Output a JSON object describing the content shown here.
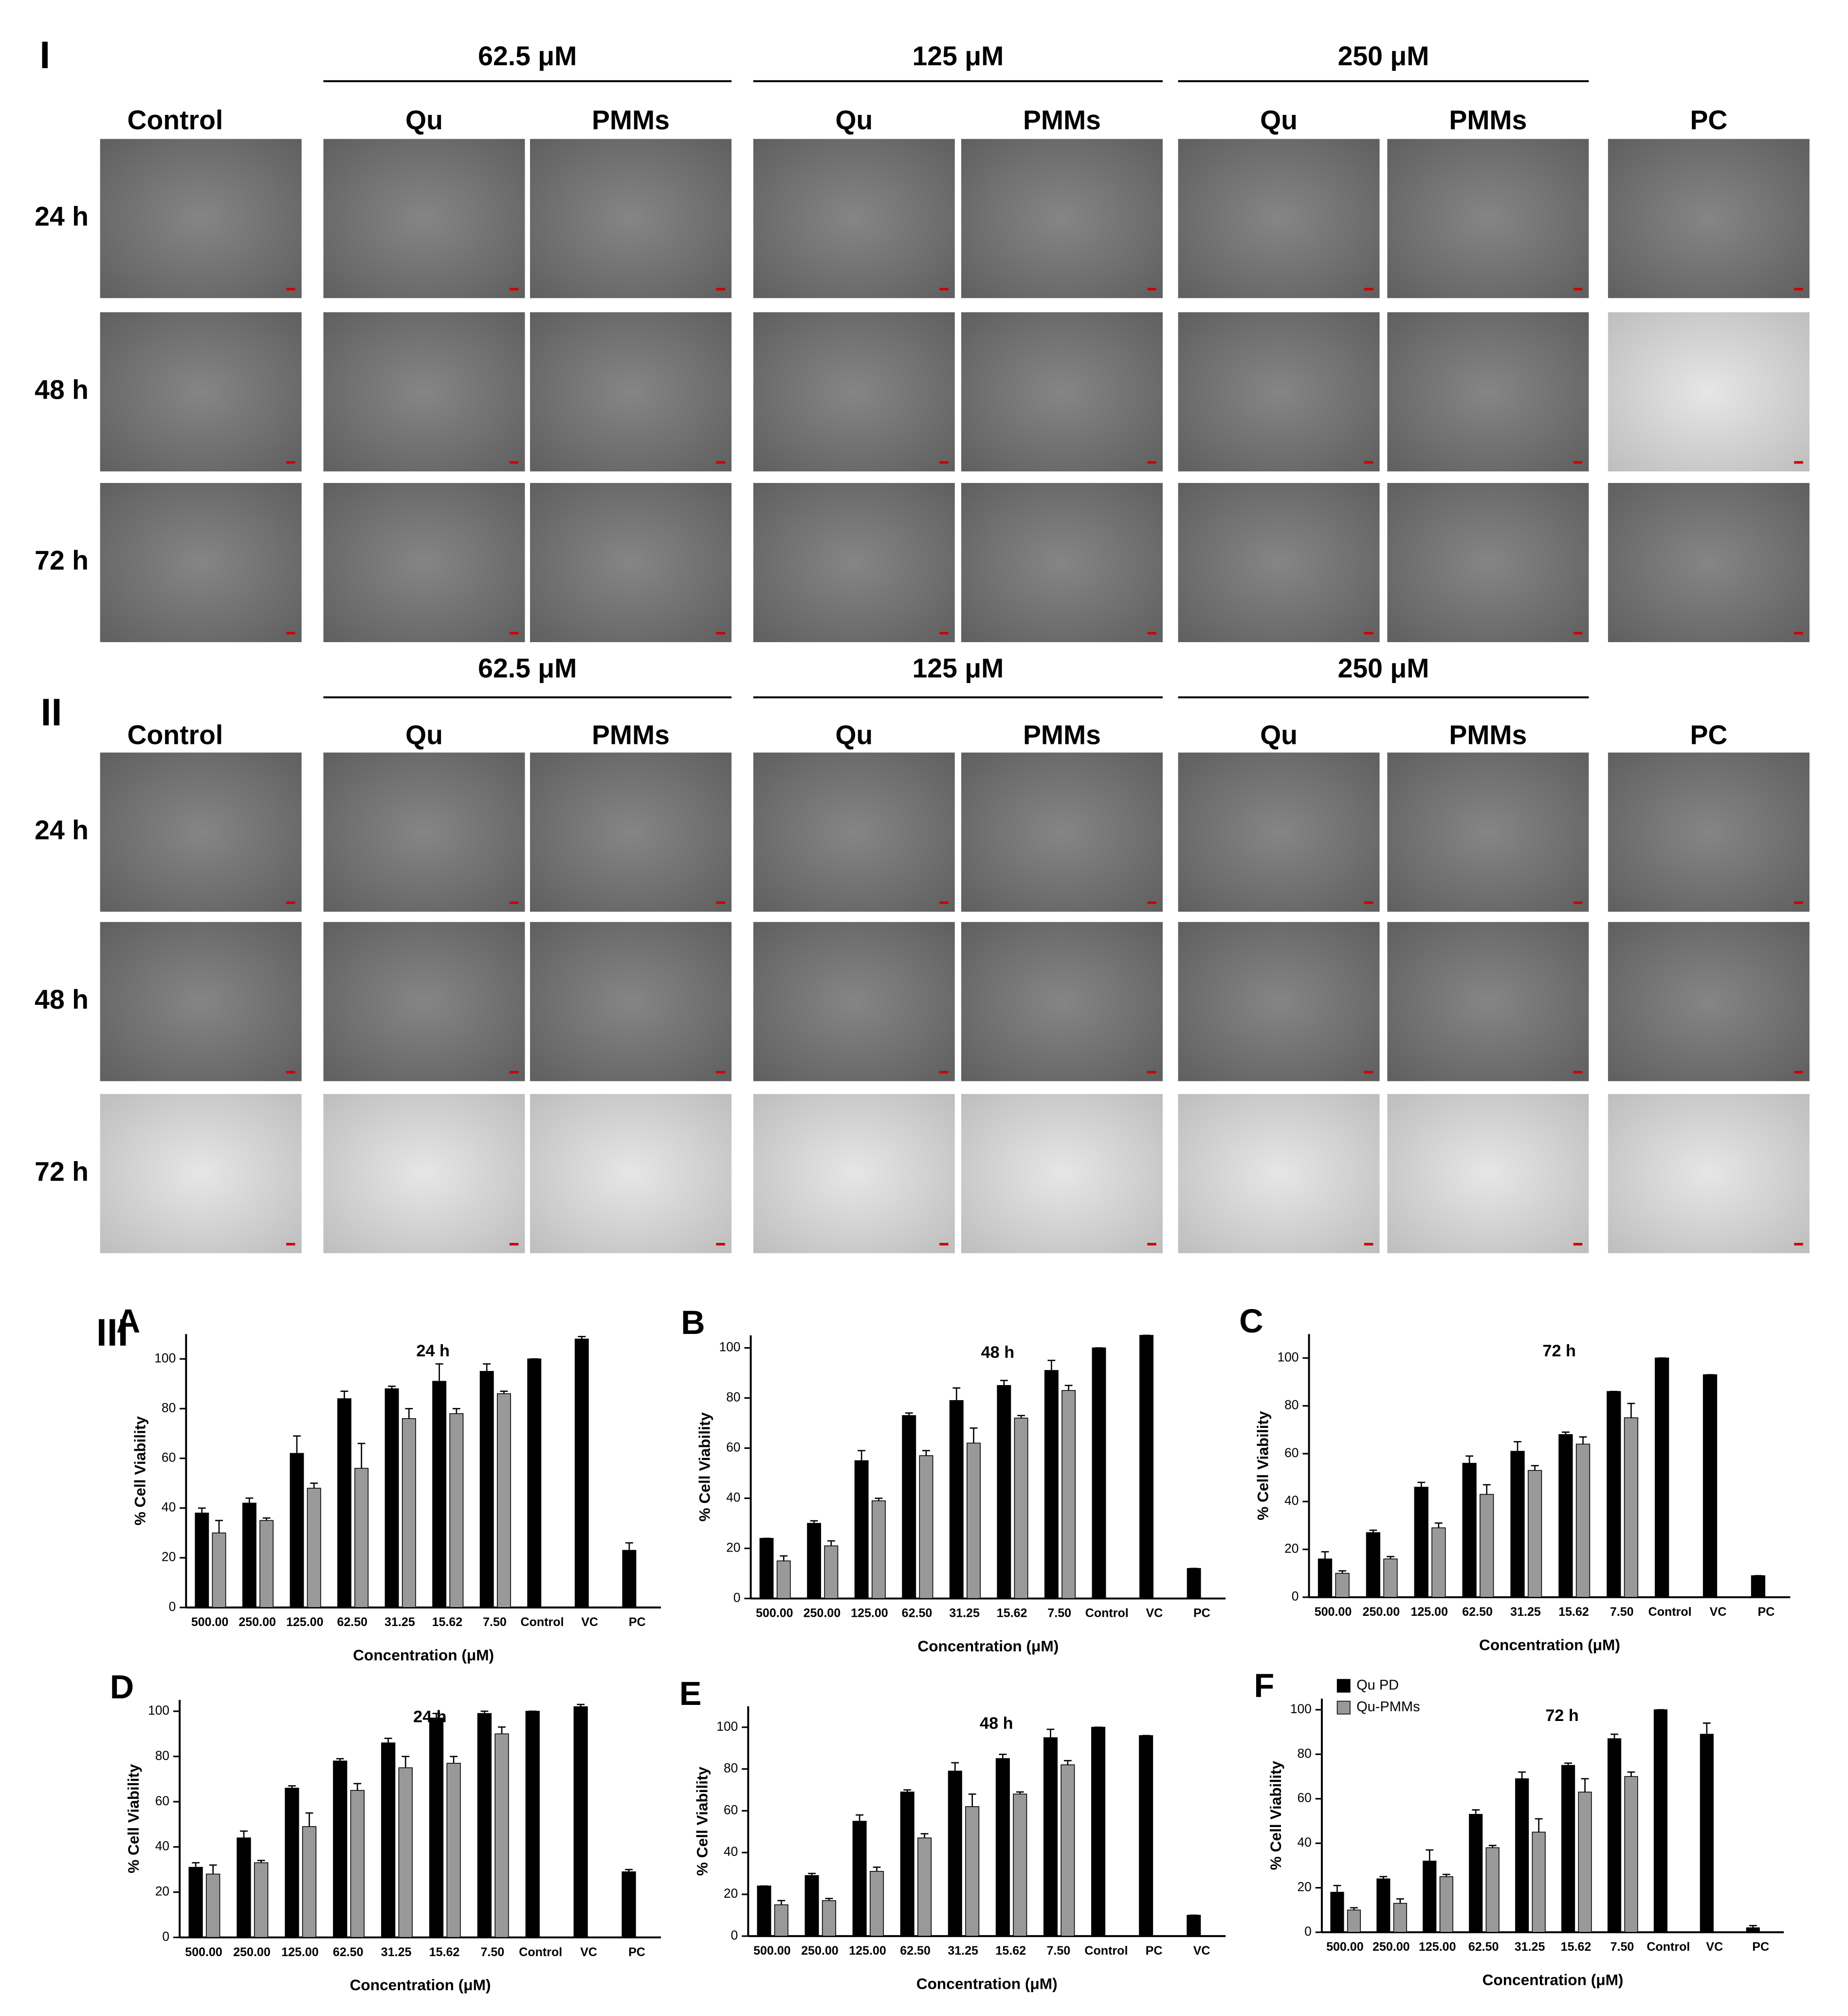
{
  "panels": [
    {
      "label": "I",
      "concentrations": [
        "62.5 μM",
        "125 μM",
        "250 μM"
      ],
      "columns": [
        "Control",
        "Qu",
        "PMMs",
        "Qu",
        "PMMs",
        "Qu",
        "PMMs",
        "PC"
      ],
      "rows": [
        "24 h",
        "48 h",
        "72 h"
      ]
    },
    {
      "label": "II",
      "concentrations": [
        "62.5 μM",
        "125 μM",
        "250 μM"
      ],
      "columns": [
        "Control",
        "Qu",
        "PMMs",
        "Qu",
        "PMMs",
        "Qu",
        "PMMs",
        "PC"
      ],
      "rows": [
        "24 h",
        "48 h",
        "72 h"
      ]
    }
  ],
  "figure_label": "III",
  "chart_data": [
    {
      "type": "bar",
      "label": "A",
      "title": "24 h",
      "x_label": "Concentration (μM)",
      "y_label": "% Cell Viability",
      "categories": [
        "500.00",
        "250.00",
        "125.00",
        "62.50",
        "31.25",
        "15.62",
        "7.50",
        "Control",
        "VC",
        "PC"
      ],
      "series": [
        {
          "color": "#000000",
          "values": [
            38,
            42,
            62,
            84,
            88,
            91,
            95,
            100,
            108,
            23
          ],
          "errors": [
            2,
            2,
            7,
            3,
            1,
            7,
            3,
            0,
            1,
            3
          ]
        },
        {
          "color": "#999999",
          "values": [
            30,
            35,
            48,
            56,
            76,
            78,
            86,
            null,
            null,
            null
          ],
          "errors": [
            5,
            1,
            2,
            10,
            4,
            2,
            1,
            null,
            null,
            null
          ]
        }
      ],
      "ylim": [
        0,
        110
      ],
      "yticks": [
        0,
        20,
        40,
        60,
        80,
        100
      ]
    },
    {
      "type": "bar",
      "label": "B",
      "title": "48 h",
      "x_label": "Concentration (μM)",
      "y_label": "% Cell Viability",
      "categories": [
        "500.00",
        "250.00",
        "125.00",
        "62.50",
        "31.25",
        "15.62",
        "7.50",
        "Control",
        "VC",
        "PC"
      ],
      "series": [
        {
          "color": "#000000",
          "values": [
            24,
            30,
            55,
            73,
            79,
            85,
            91,
            100,
            105,
            12
          ],
          "errors": [
            0,
            1,
            4,
            1,
            5,
            2,
            4,
            0,
            0,
            0
          ]
        },
        {
          "color": "#999999",
          "values": [
            15,
            21,
            39,
            57,
            62,
            72,
            83,
            null,
            null,
            null
          ],
          "errors": [
            2,
            2,
            1,
            2,
            6,
            1,
            2,
            null,
            null,
            null
          ]
        }
      ],
      "ylim": [
        0,
        105
      ],
      "yticks": [
        0,
        20,
        40,
        60,
        80,
        100
      ]
    },
    {
      "type": "bar",
      "label": "C",
      "title": "72 h",
      "x_label": "Concentration (μM)",
      "y_label": "% Cell Viability",
      "categories": [
        "500.00",
        "250.00",
        "125.00",
        "62.50",
        "31.25",
        "15.62",
        "7.50",
        "Control",
        "VC",
        "PC"
      ],
      "series": [
        {
          "color": "#000000",
          "values": [
            16,
            27,
            46,
            56,
            61,
            68,
            86,
            100,
            93,
            9
          ],
          "errors": [
            3,
            1,
            2,
            3,
            4,
            1,
            0,
            0,
            0,
            0
          ]
        },
        {
          "color": "#999999",
          "values": [
            10,
            16,
            29,
            43,
            53,
            64,
            75,
            null,
            null,
            null
          ],
          "errors": [
            1,
            1,
            2,
            4,
            2,
            3,
            6,
            null,
            null,
            null
          ]
        }
      ],
      "ylim": [
        0,
        110
      ],
      "yticks": [
        0,
        20,
        40,
        60,
        80,
        100
      ]
    },
    {
      "type": "bar",
      "label": "D",
      "title": "24 h",
      "x_label": "Concentration (μM)",
      "y_label": "% Cell Viability",
      "categories": [
        "500.00",
        "250.00",
        "125.00",
        "62.50",
        "31.25",
        "15.62",
        "7.50",
        "Control",
        "VC",
        "PC"
      ],
      "series": [
        {
          "color": "#000000",
          "values": [
            31,
            44,
            66,
            78,
            86,
            97,
            99,
            100,
            102,
            29
          ],
          "errors": [
            2,
            3,
            1,
            1,
            2,
            2,
            1,
            0,
            1,
            1
          ]
        },
        {
          "color": "#999999",
          "values": [
            28,
            33,
            49,
            65,
            75,
            77,
            90,
            null,
            null,
            null
          ],
          "errors": [
            4,
            1,
            6,
            3,
            5,
            3,
            3,
            null,
            null,
            null
          ]
        }
      ],
      "ylim": [
        0,
        105
      ],
      "yticks": [
        0,
        20,
        40,
        60,
        80,
        100
      ]
    },
    {
      "type": "bar",
      "label": "E",
      "title": "48 h",
      "x_label": "Concentration (μM)",
      "y_label": "% Cell Viability",
      "categories": [
        "500.00",
        "250.00",
        "125.00",
        "62.50",
        "31.25",
        "15.62",
        "7.50",
        "Control",
        "PC",
        "VC"
      ],
      "series": [
        {
          "color": "#000000",
          "values": [
            24,
            29,
            55,
            69,
            79,
            85,
            95,
            100,
            96,
            10
          ],
          "errors": [
            0,
            1,
            3,
            1,
            4,
            2,
            4,
            0,
            0,
            0
          ]
        },
        {
          "color": "#999999",
          "values": [
            15,
            17,
            31,
            47,
            62,
            68,
            82,
            null,
            null,
            null
          ],
          "errors": [
            2,
            1,
            2,
            2,
            6,
            1,
            2,
            null,
            null,
            null
          ]
        }
      ],
      "ylim": [
        0,
        110
      ],
      "yticks": [
        0,
        20,
        40,
        60,
        80,
        100
      ]
    },
    {
      "type": "bar",
      "label": "F",
      "title": "72 h",
      "x_label": "Concentration (μM)",
      "y_label": "% Cell Viability",
      "categories": [
        "500.00",
        "250.00",
        "125.00",
        "62.50",
        "31.25",
        "15.62",
        "7.50",
        "Control",
        "VC",
        "PC"
      ],
      "series": [
        {
          "name": "Qu PD",
          "color": "#000000",
          "values": [
            18,
            24,
            32,
            53,
            69,
            75,
            87,
            100,
            89,
            2
          ],
          "errors": [
            3,
            1,
            5,
            2,
            3,
            1,
            2,
            0,
            5,
            1
          ]
        },
        {
          "name": "Qu-PMMs",
          "color": "#999999",
          "values": [
            10,
            13,
            25,
            38,
            45,
            63,
            70,
            null,
            null,
            null
          ],
          "errors": [
            1,
            2,
            1,
            1,
            6,
            6,
            2,
            null,
            null,
            null
          ]
        }
      ],
      "legend": "upper left",
      "ylim": [
        0,
        105
      ],
      "yticks": [
        0,
        20,
        40,
        60,
        80,
        100
      ]
    }
  ]
}
